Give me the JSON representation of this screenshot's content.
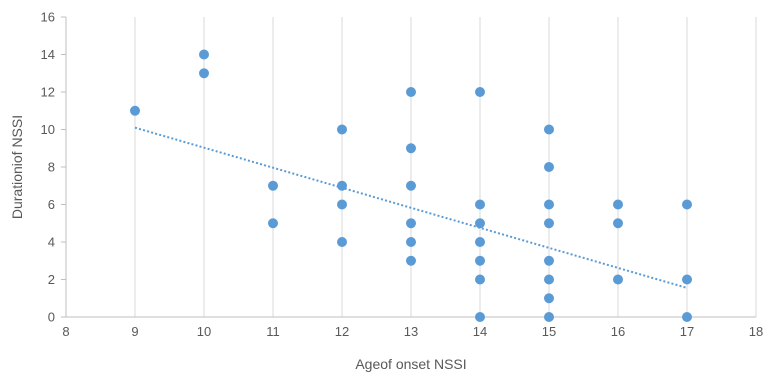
{
  "chart_data": {
    "type": "scatter",
    "xlabel": "Ageof onset    NSSI",
    "ylabel": "Durationiof NSSI",
    "xlim": [
      8,
      18
    ],
    "ylim": [
      0,
      16
    ],
    "x_ticks": [
      8,
      9,
      10,
      11,
      12,
      13,
      14,
      15,
      16,
      17,
      18
    ],
    "y_ticks": [
      0,
      2,
      4,
      6,
      8,
      10,
      12,
      14,
      16
    ],
    "grid": "vertical gridlines",
    "legend": "none",
    "colors": {
      "points": "#5b9bd5",
      "trendline": "#5b9bd5",
      "grid": "#d9d9d9",
      "axis": "#bfbfbf",
      "text": "#595959"
    },
    "series": [
      {
        "points": [
          [
            9,
            11
          ],
          [
            10,
            14
          ],
          [
            10,
            13
          ],
          [
            11,
            7
          ],
          [
            11,
            5
          ],
          [
            12,
            10
          ],
          [
            12,
            7
          ],
          [
            12,
            6
          ],
          [
            12,
            4
          ],
          [
            13,
            12
          ],
          [
            13,
            9
          ],
          [
            13,
            7
          ],
          [
            13,
            5
          ],
          [
            13,
            4
          ],
          [
            13,
            3
          ],
          [
            14,
            12
          ],
          [
            14,
            6
          ],
          [
            14,
            5
          ],
          [
            14,
            4
          ],
          [
            14,
            3
          ],
          [
            14,
            2
          ],
          [
            14,
            0
          ],
          [
            15,
            10
          ],
          [
            15,
            8
          ],
          [
            15,
            6
          ],
          [
            15,
            5
          ],
          [
            15,
            3
          ],
          [
            15,
            2
          ],
          [
            15,
            1
          ],
          [
            15,
            0
          ],
          [
            16,
            6
          ],
          [
            16,
            5
          ],
          [
            16,
            2
          ],
          [
            17,
            6
          ],
          [
            17,
            2
          ],
          [
            17,
            0
          ]
        ]
      }
    ],
    "trendline": {
      "style": "dotted",
      "from": [
        9,
        10.1
      ],
      "to": [
        17,
        1.55
      ]
    }
  }
}
